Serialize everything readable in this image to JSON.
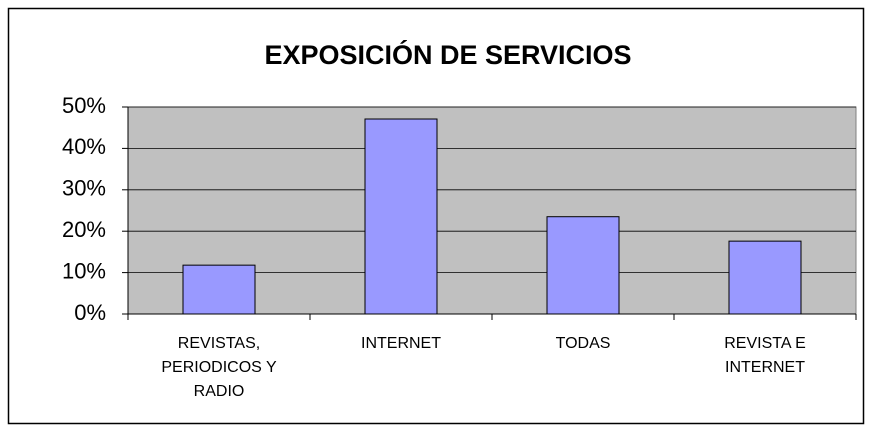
{
  "chart_data": {
    "type": "bar",
    "title": "EXPOSICIÓN DE SERVICIOS",
    "categories": [
      "REVISTAS, PERIODICOS Y RADIO",
      "INTERNET",
      "TODAS",
      "REVISTA E INTERNET"
    ],
    "values": [
      11.8,
      47.1,
      23.5,
      17.6
    ],
    "color": "#9999ff",
    "ylim": [
      0,
      50
    ],
    "yticks": [
      {
        "value": 0,
        "label": "0%"
      },
      {
        "value": 10,
        "label": "10%"
      },
      {
        "value": 20,
        "label": "20%"
      },
      {
        "value": 30,
        "label": "30%"
      },
      {
        "value": 40,
        "label": "40%"
      },
      {
        "value": 50,
        "label": "50%"
      }
    ],
    "grid": true
  }
}
